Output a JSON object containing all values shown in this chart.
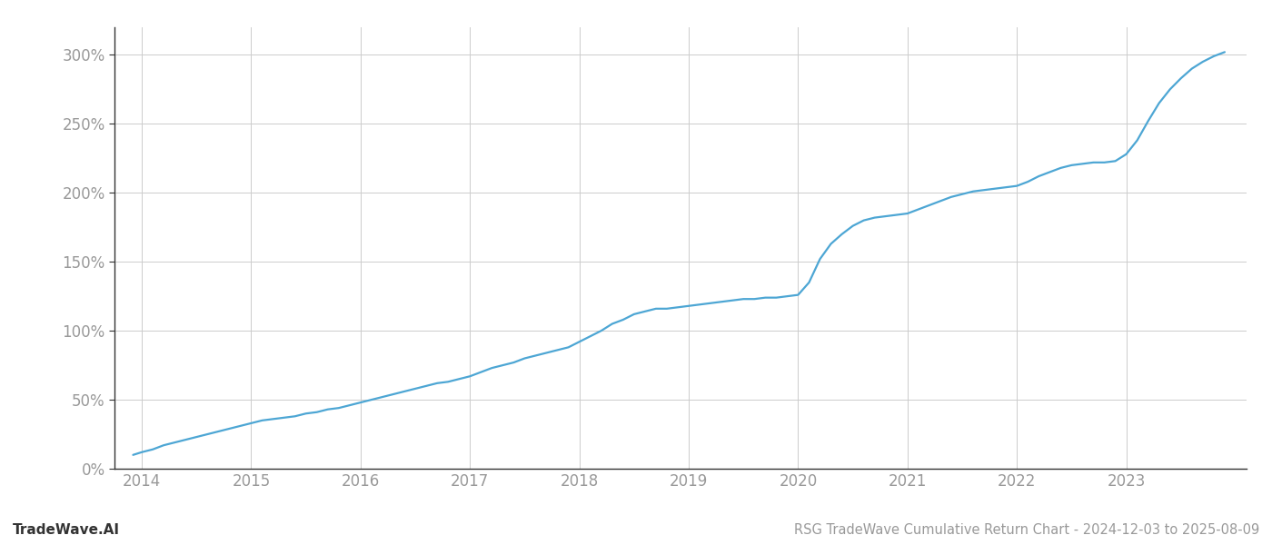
{
  "title": "RSG TradeWave Cumulative Return Chart - 2024-12-03 to 2025-08-09",
  "watermark": "TradeWave.AI",
  "line_color": "#4da6d4",
  "background_color": "#ffffff",
  "grid_color": "#cccccc",
  "x_years": [
    2014,
    2015,
    2016,
    2017,
    2018,
    2019,
    2020,
    2021,
    2022,
    2023
  ],
  "x_values": [
    2013.92,
    2014.0,
    2014.1,
    2014.2,
    2014.3,
    2014.4,
    2014.5,
    2014.6,
    2014.7,
    2014.8,
    2014.9,
    2015.0,
    2015.1,
    2015.2,
    2015.3,
    2015.4,
    2015.5,
    2015.6,
    2015.7,
    2015.8,
    2015.9,
    2016.0,
    2016.1,
    2016.2,
    2016.3,
    2016.4,
    2016.5,
    2016.6,
    2016.7,
    2016.8,
    2016.9,
    2017.0,
    2017.1,
    2017.2,
    2017.3,
    2017.4,
    2017.5,
    2017.6,
    2017.7,
    2017.8,
    2017.9,
    2018.0,
    2018.1,
    2018.2,
    2018.3,
    2018.4,
    2018.5,
    2018.6,
    2018.7,
    2018.8,
    2018.9,
    2019.0,
    2019.1,
    2019.2,
    2019.3,
    2019.4,
    2019.5,
    2019.6,
    2019.7,
    2019.8,
    2019.9,
    2020.0,
    2020.1,
    2020.2,
    2020.3,
    2020.4,
    2020.5,
    2020.6,
    2020.7,
    2020.8,
    2020.9,
    2021.0,
    2021.1,
    2021.2,
    2021.3,
    2021.4,
    2021.5,
    2021.6,
    2021.7,
    2021.8,
    2021.9,
    2022.0,
    2022.1,
    2022.2,
    2022.3,
    2022.4,
    2022.5,
    2022.6,
    2022.7,
    2022.8,
    2022.9,
    2023.0,
    2023.1,
    2023.2,
    2023.3,
    2023.4,
    2023.5,
    2023.6,
    2023.7,
    2023.8,
    2023.9
  ],
  "y_values": [
    10,
    12,
    14,
    17,
    19,
    21,
    23,
    25,
    27,
    29,
    31,
    33,
    35,
    36,
    37,
    38,
    40,
    41,
    43,
    44,
    46,
    48,
    50,
    52,
    54,
    56,
    58,
    60,
    62,
    63,
    65,
    67,
    70,
    73,
    75,
    77,
    80,
    82,
    84,
    86,
    88,
    92,
    96,
    100,
    105,
    108,
    112,
    114,
    116,
    116,
    117,
    118,
    119,
    120,
    121,
    122,
    123,
    123,
    124,
    124,
    125,
    126,
    135,
    152,
    163,
    170,
    176,
    180,
    182,
    183,
    184,
    185,
    188,
    191,
    194,
    197,
    199,
    201,
    202,
    203,
    204,
    205,
    208,
    212,
    215,
    218,
    220,
    221,
    222,
    222,
    223,
    228,
    238,
    252,
    265,
    275,
    283,
    290,
    295,
    299,
    302
  ],
  "ylim": [
    0,
    320
  ],
  "xlim": [
    2013.75,
    2024.1
  ],
  "yticks": [
    0,
    50,
    100,
    150,
    200,
    250,
    300
  ],
  "ytick_labels": [
    "0%",
    "50%",
    "100%",
    "150%",
    "200%",
    "250%",
    "300%"
  ],
  "line_width": 1.6,
  "title_fontsize": 10.5,
  "watermark_fontsize": 11,
  "tick_fontsize": 12,
  "tick_color": "#999999",
  "spine_color": "#333333",
  "left_spine_color": "#333333"
}
